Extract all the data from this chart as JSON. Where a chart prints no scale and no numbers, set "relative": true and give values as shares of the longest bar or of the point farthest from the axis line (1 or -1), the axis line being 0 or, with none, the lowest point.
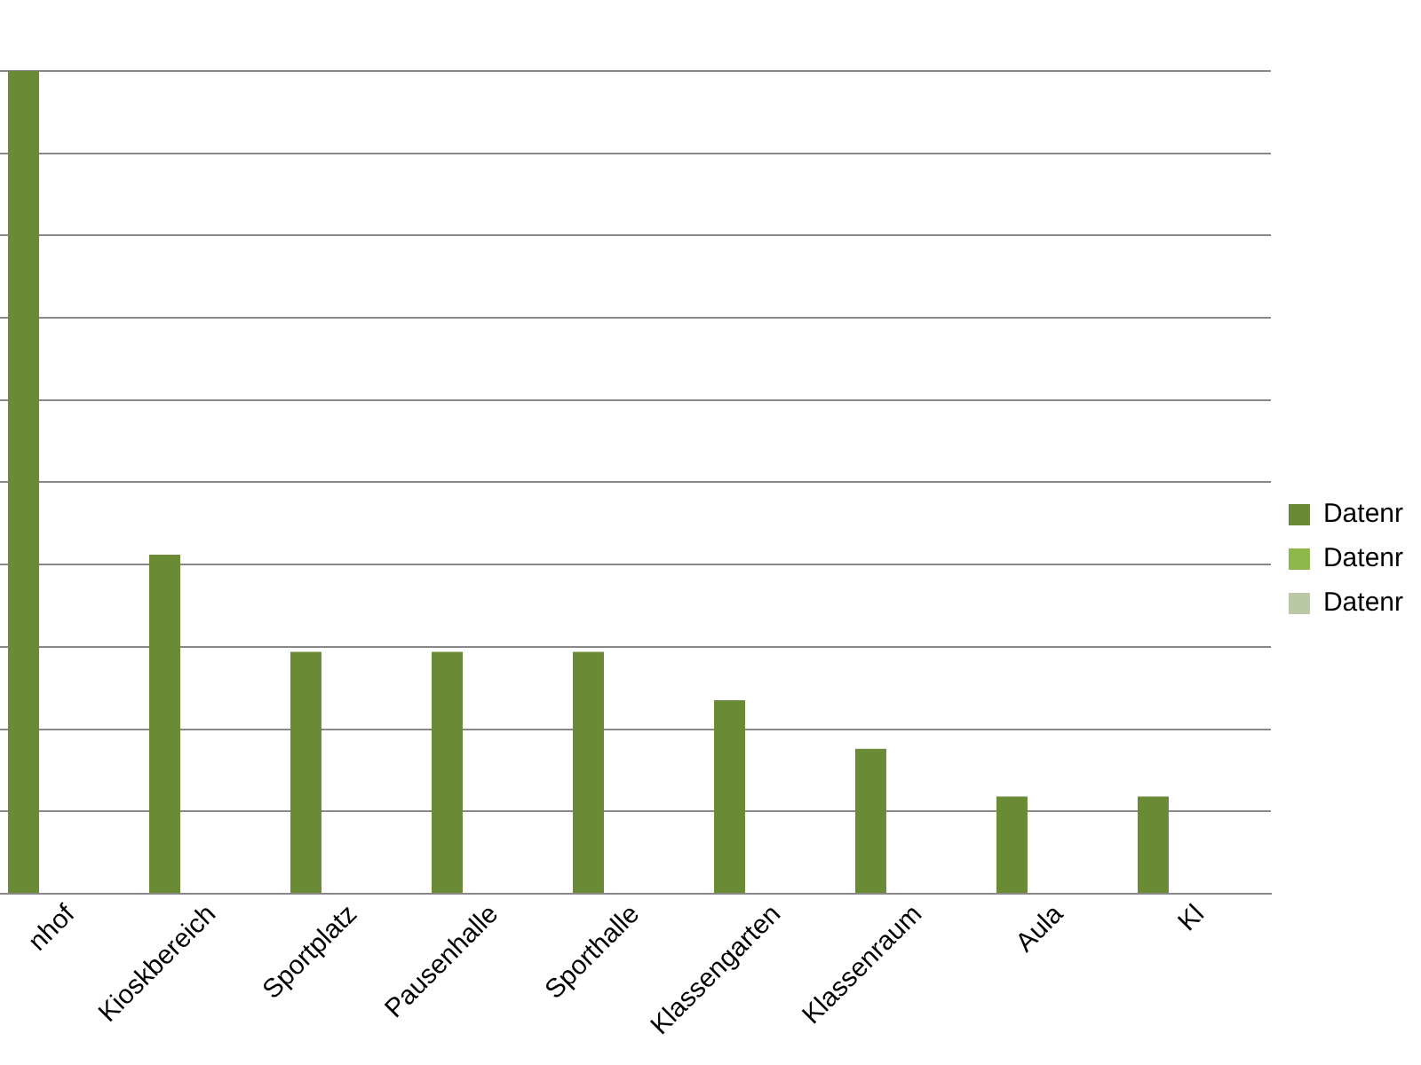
{
  "chart_data": {
    "type": "bar",
    "relative": true,
    "grid": "y",
    "legend": "right",
    "categories": [
      "nhof",
      "Kioskbereich",
      "Sportplatz",
      "Pausenhalle",
      "Sporthalle",
      "Klassengarten",
      "Klassenraum",
      "Aula",
      "Kl"
    ],
    "series": [
      {
        "name": "Datenr",
        "color": "#6a8a35",
        "values": [
          1,
          0.412,
          0.294,
          0.294,
          0.294,
          0.235,
          0.176,
          0.118,
          0.118
        ]
      },
      {
        "name": "Datenr",
        "color": "#8fb84a",
        "values": [
          null,
          null,
          null,
          null,
          null,
          null,
          null,
          null,
          null
        ]
      },
      {
        "name": "Datenr",
        "color": "#b9c9a6",
        "values": [
          null,
          null,
          null,
          null,
          null,
          null,
          null,
          null,
          null
        ]
      }
    ]
  }
}
